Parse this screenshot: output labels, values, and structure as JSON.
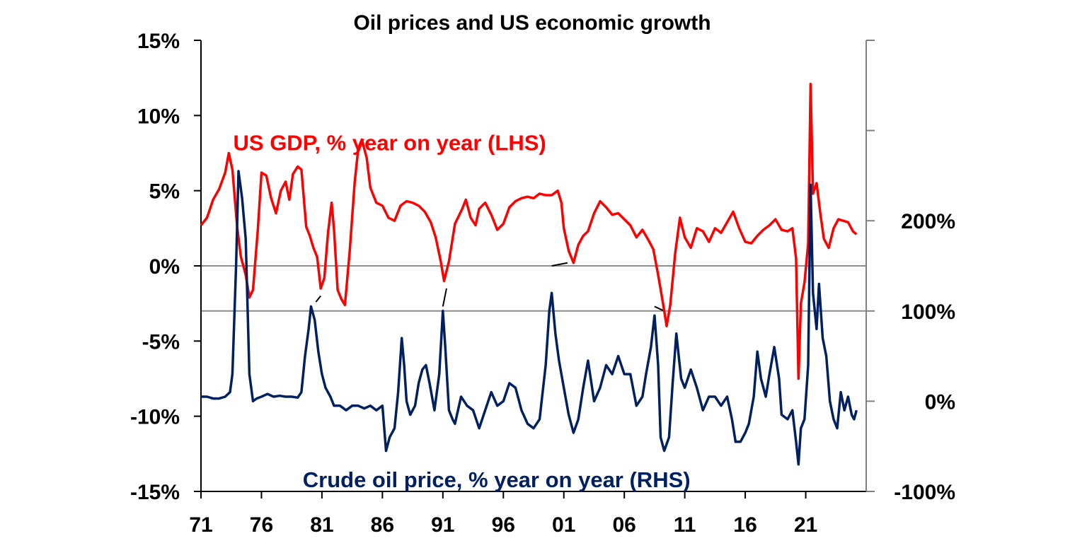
{
  "chart_data": {
    "type": "line",
    "title": "Oil prices and US economic growth",
    "x_axis": {
      "tick_labels": [
        "71",
        "76",
        "81",
        "86",
        "91",
        "96",
        "01",
        "06",
        "11",
        "16",
        "21"
      ],
      "range": [
        1971,
        2026
      ]
    },
    "y_left": {
      "tick_labels": [
        "15%",
        "10%",
        "5%",
        "0%",
        "-5%",
        "-10%",
        "-15%"
      ],
      "tick_values": [
        15,
        10,
        5,
        0,
        -5,
        -10,
        -15
      ],
      "range": [
        -15,
        15
      ]
    },
    "y_right": {
      "tick_labels": [
        "200%",
        "100%",
        "0%",
        "-100%"
      ],
      "tick_values": [
        200,
        100,
        0,
        -100
      ],
      "range": [
        -100,
        400
      ]
    },
    "series": [
      {
        "name": "US GDP, % year on year (LHS)",
        "axis": "left",
        "color": "#ff0000",
        "points": [
          [
            1971.0,
            2.7
          ],
          [
            1971.5,
            3.2
          ],
          [
            1972.0,
            4.4
          ],
          [
            1972.5,
            5.1
          ],
          [
            1973.0,
            6.2
          ],
          [
            1973.3,
            7.5
          ],
          [
            1973.6,
            6.4
          ],
          [
            1974.0,
            2.5
          ],
          [
            1974.3,
            0.6
          ],
          [
            1974.7,
            -0.6
          ],
          [
            1975.0,
            -2.1
          ],
          [
            1975.3,
            -1.6
          ],
          [
            1975.7,
            2.4
          ],
          [
            1976.0,
            6.2
          ],
          [
            1976.4,
            6.0
          ],
          [
            1976.8,
            4.5
          ],
          [
            1977.2,
            3.5
          ],
          [
            1977.6,
            5.0
          ],
          [
            1978.0,
            5.6
          ],
          [
            1978.3,
            4.4
          ],
          [
            1978.6,
            6.1
          ],
          [
            1979.0,
            6.6
          ],
          [
            1979.3,
            6.4
          ],
          [
            1979.7,
            2.6
          ],
          [
            1980.0,
            2.0
          ],
          [
            1980.3,
            1.2
          ],
          [
            1980.6,
            0.6
          ],
          [
            1980.9,
            -1.5
          ],
          [
            1981.2,
            -0.8
          ],
          [
            1981.5,
            2.2
          ],
          [
            1981.8,
            4.2
          ],
          [
            1982.0,
            2.4
          ],
          [
            1982.3,
            -1.6
          ],
          [
            1982.6,
            -2.2
          ],
          [
            1982.9,
            -2.6
          ],
          [
            1983.3,
            1.0
          ],
          [
            1983.7,
            5.5
          ],
          [
            1984.0,
            7.8
          ],
          [
            1984.3,
            8.4
          ],
          [
            1984.7,
            7.2
          ],
          [
            1985.0,
            5.2
          ],
          [
            1985.5,
            4.2
          ],
          [
            1986.0,
            4.0
          ],
          [
            1986.5,
            3.2
          ],
          [
            1987.0,
            3.0
          ],
          [
            1987.5,
            4.0
          ],
          [
            1988.0,
            4.3
          ],
          [
            1988.5,
            4.2
          ],
          [
            1989.0,
            4.0
          ],
          [
            1989.5,
            3.6
          ],
          [
            1990.0,
            2.9
          ],
          [
            1990.4,
            1.9
          ],
          [
            1990.8,
            0.4
          ],
          [
            1991.1,
            -1.0
          ],
          [
            1991.5,
            0.3
          ],
          [
            1992.0,
            2.8
          ],
          [
            1992.6,
            3.8
          ],
          [
            1992.9,
            4.4
          ],
          [
            1993.3,
            3.2
          ],
          [
            1993.7,
            2.7
          ],
          [
            1994.0,
            3.8
          ],
          [
            1994.5,
            4.2
          ],
          [
            1995.0,
            3.4
          ],
          [
            1995.5,
            2.4
          ],
          [
            1996.0,
            2.8
          ],
          [
            1996.5,
            3.9
          ],
          [
            1997.0,
            4.3
          ],
          [
            1997.5,
            4.5
          ],
          [
            1998.0,
            4.6
          ],
          [
            1998.5,
            4.5
          ],
          [
            1999.0,
            4.8
          ],
          [
            1999.5,
            4.7
          ],
          [
            2000.0,
            4.7
          ],
          [
            2000.5,
            5.0
          ],
          [
            2000.8,
            4.2
          ],
          [
            2001.0,
            2.5
          ],
          [
            2001.4,
            1.0
          ],
          [
            2001.8,
            0.2
          ],
          [
            2002.2,
            1.4
          ],
          [
            2002.6,
            2.0
          ],
          [
            2003.0,
            2.3
          ],
          [
            2003.5,
            3.5
          ],
          [
            2004.0,
            4.3
          ],
          [
            2004.5,
            3.9
          ],
          [
            2005.0,
            3.4
          ],
          [
            2005.5,
            3.5
          ],
          [
            2006.0,
            3.1
          ],
          [
            2006.5,
            2.7
          ],
          [
            2007.0,
            1.9
          ],
          [
            2007.5,
            2.4
          ],
          [
            2008.0,
            1.7
          ],
          [
            2008.4,
            1.1
          ],
          [
            2008.8,
            -0.6
          ],
          [
            2009.2,
            -2.5
          ],
          [
            2009.5,
            -4.0
          ],
          [
            2009.8,
            -2.6
          ],
          [
            2010.2,
            0.8
          ],
          [
            2010.6,
            3.2
          ],
          [
            2011.0,
            1.9
          ],
          [
            2011.5,
            1.2
          ],
          [
            2012.0,
            2.5
          ],
          [
            2012.5,
            2.3
          ],
          [
            2013.0,
            1.6
          ],
          [
            2013.5,
            2.5
          ],
          [
            2014.0,
            2.2
          ],
          [
            2014.5,
            2.9
          ],
          [
            2015.0,
            3.6
          ],
          [
            2015.5,
            2.5
          ],
          [
            2016.0,
            1.6
          ],
          [
            2016.5,
            1.5
          ],
          [
            2017.0,
            2.0
          ],
          [
            2017.5,
            2.4
          ],
          [
            2018.0,
            2.7
          ],
          [
            2018.5,
            3.1
          ],
          [
            2019.0,
            2.4
          ],
          [
            2019.5,
            2.3
          ],
          [
            2019.9,
            2.5
          ],
          [
            2020.2,
            0.5
          ],
          [
            2020.4,
            -7.5
          ],
          [
            2020.6,
            -2.5
          ],
          [
            2020.9,
            -1.1
          ],
          [
            2021.2,
            1.5
          ],
          [
            2021.4,
            12.1
          ],
          [
            2021.6,
            4.8
          ],
          [
            2021.9,
            5.5
          ],
          [
            2022.2,
            3.5
          ],
          [
            2022.5,
            1.8
          ],
          [
            2022.9,
            1.2
          ],
          [
            2023.3,
            2.5
          ],
          [
            2023.7,
            3.1
          ],
          [
            2024.1,
            3.0
          ],
          [
            2024.5,
            2.9
          ],
          [
            2024.9,
            2.3
          ],
          [
            2025.2,
            2.1
          ]
        ]
      },
      {
        "name": "Crude oil price, % year on year (RHS)",
        "axis": "right",
        "color": "#002060",
        "points": [
          [
            1971.0,
            5
          ],
          [
            1971.5,
            5
          ],
          [
            1972.0,
            3
          ],
          [
            1972.5,
            3
          ],
          [
            1973.0,
            5
          ],
          [
            1973.4,
            10
          ],
          [
            1973.6,
            30
          ],
          [
            1973.9,
            150
          ],
          [
            1974.1,
            255
          ],
          [
            1974.4,
            225
          ],
          [
            1974.7,
            180
          ],
          [
            1975.0,
            30
          ],
          [
            1975.3,
            0
          ],
          [
            1975.6,
            3
          ],
          [
            1976.0,
            5
          ],
          [
            1976.5,
            8
          ],
          [
            1977.0,
            5
          ],
          [
            1977.5,
            6
          ],
          [
            1978.0,
            5
          ],
          [
            1978.5,
            5
          ],
          [
            1979.0,
            4
          ],
          [
            1979.3,
            10
          ],
          [
            1979.6,
            50
          ],
          [
            1979.9,
            80
          ],
          [
            1980.1,
            105
          ],
          [
            1980.4,
            90
          ],
          [
            1980.7,
            55
          ],
          [
            1981.0,
            30
          ],
          [
            1981.3,
            15
          ],
          [
            1981.7,
            5
          ],
          [
            1982.0,
            -5
          ],
          [
            1982.5,
            -5
          ],
          [
            1983.0,
            -10
          ],
          [
            1983.5,
            -5
          ],
          [
            1984.0,
            -5
          ],
          [
            1984.5,
            -8
          ],
          [
            1985.0,
            -5
          ],
          [
            1985.5,
            -10
          ],
          [
            1986.0,
            -5
          ],
          [
            1986.3,
            -55
          ],
          [
            1986.6,
            -40
          ],
          [
            1987.0,
            -30
          ],
          [
            1987.3,
            10
          ],
          [
            1987.6,
            70
          ],
          [
            1987.8,
            40
          ],
          [
            1988.0,
            0
          ],
          [
            1988.3,
            -15
          ],
          [
            1988.7,
            -5
          ],
          [
            1989.0,
            20
          ],
          [
            1989.3,
            35
          ],
          [
            1989.6,
            40
          ],
          [
            1989.9,
            20
          ],
          [
            1990.3,
            -10
          ],
          [
            1990.7,
            30
          ],
          [
            1991.0,
            100
          ],
          [
            1991.2,
            60
          ],
          [
            1991.5,
            -10
          ],
          [
            1991.8,
            -20
          ],
          [
            1992.0,
            -25
          ],
          [
            1992.5,
            5
          ],
          [
            1993.0,
            -5
          ],
          [
            1993.5,
            -10
          ],
          [
            1994.0,
            -30
          ],
          [
            1994.5,
            -10
          ],
          [
            1995.0,
            10
          ],
          [
            1995.5,
            -5
          ],
          [
            1996.0,
            0
          ],
          [
            1996.5,
            20
          ],
          [
            1997.0,
            15
          ],
          [
            1997.5,
            -10
          ],
          [
            1998.0,
            -25
          ],
          [
            1998.5,
            -30
          ],
          [
            1999.0,
            -20
          ],
          [
            1999.5,
            40
          ],
          [
            1999.8,
            100
          ],
          [
            2000.0,
            120
          ],
          [
            2000.3,
            75
          ],
          [
            2000.6,
            45
          ],
          [
            2001.0,
            15
          ],
          [
            2001.4,
            -15
          ],
          [
            2001.8,
            -35
          ],
          [
            2002.2,
            -20
          ],
          [
            2002.6,
            15
          ],
          [
            2003.0,
            45
          ],
          [
            2003.5,
            0
          ],
          [
            2004.0,
            15
          ],
          [
            2004.5,
            40
          ],
          [
            2005.0,
            30
          ],
          [
            2005.5,
            50
          ],
          [
            2006.0,
            30
          ],
          [
            2006.5,
            30
          ],
          [
            2007.0,
            -5
          ],
          [
            2007.5,
            5
          ],
          [
            2007.8,
            30
          ],
          [
            2008.2,
            60
          ],
          [
            2008.5,
            95
          ],
          [
            2008.8,
            40
          ],
          [
            2009.0,
            -40
          ],
          [
            2009.3,
            -55
          ],
          [
            2009.7,
            -40
          ],
          [
            2010.0,
            20
          ],
          [
            2010.3,
            75
          ],
          [
            2010.7,
            25
          ],
          [
            2011.0,
            15
          ],
          [
            2011.5,
            35
          ],
          [
            2012.0,
            15
          ],
          [
            2012.5,
            -10
          ],
          [
            2013.0,
            5
          ],
          [
            2013.5,
            5
          ],
          [
            2014.0,
            -5
          ],
          [
            2014.5,
            5
          ],
          [
            2014.9,
            -20
          ],
          [
            2015.2,
            -45
          ],
          [
            2015.6,
            -45
          ],
          [
            2016.0,
            -35
          ],
          [
            2016.3,
            -25
          ],
          [
            2016.7,
            5
          ],
          [
            2017.0,
            55
          ],
          [
            2017.3,
            25
          ],
          [
            2017.7,
            5
          ],
          [
            2018.0,
            30
          ],
          [
            2018.4,
            60
          ],
          [
            2018.8,
            25
          ],
          [
            2019.0,
            -15
          ],
          [
            2019.5,
            -20
          ],
          [
            2019.9,
            -10
          ],
          [
            2020.2,
            -45
          ],
          [
            2020.4,
            -70
          ],
          [
            2020.6,
            -30
          ],
          [
            2020.9,
            -20
          ],
          [
            2021.2,
            40
          ],
          [
            2021.4,
            240
          ],
          [
            2021.6,
            120
          ],
          [
            2021.9,
            80
          ],
          [
            2022.1,
            130
          ],
          [
            2022.4,
            70
          ],
          [
            2022.7,
            50
          ],
          [
            2023.0,
            0
          ],
          [
            2023.3,
            -20
          ],
          [
            2023.6,
            -30
          ],
          [
            2023.9,
            10
          ],
          [
            2024.2,
            -10
          ],
          [
            2024.5,
            5
          ],
          [
            2024.8,
            -15
          ],
          [
            2025.0,
            -20
          ],
          [
            2025.2,
            -10
          ]
        ]
      }
    ],
    "reference_lines": [
      {
        "name": "zero-line",
        "axis": "left",
        "value": 0
      },
      {
        "name": "hundred-percent-line",
        "axis": "right",
        "value": 100
      }
    ],
    "connectors": [
      {
        "from": [
          1980.5,
          110
        ],
        "to": [
          1980.9,
          -2
        ]
      },
      {
        "from": [
          1991.0,
          105
        ],
        "to": [
          1991.3,
          -1.5
        ]
      },
      {
        "from": [
          2000.0,
          150
        ],
        "to": [
          2001.3,
          0.2
        ]
      },
      {
        "from": [
          2008.5,
          105
        ],
        "to": [
          2009.3,
          -3.0
        ]
      }
    ],
    "annotations": [
      {
        "text": "US GDP, % year on year (LHS)",
        "color": "#ff0000",
        "anchor": [
          1986.6,
          8.2
        ]
      },
      {
        "text": "Crude oil price, % year on year (RHS)",
        "color": "#002060",
        "anchor": [
          1977.3,
          -14.2
        ]
      }
    ]
  }
}
